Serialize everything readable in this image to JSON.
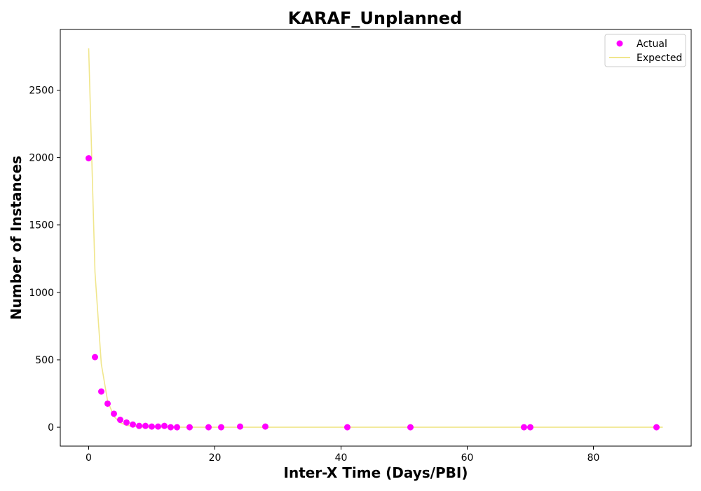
{
  "chart_data": {
    "type": "scatter",
    "title": "KARAF_Unplanned",
    "xlabel": "Inter-X Time (Days/PBI)",
    "ylabel": "Number of Instances",
    "xlim": [
      -4.5,
      95.5
    ],
    "ylim": [
      -140,
      2950
    ],
    "x_ticks": [
      0,
      20,
      40,
      60,
      80
    ],
    "y_ticks": [
      0,
      500,
      1000,
      1500,
      2000,
      2500
    ],
    "grid": false,
    "legend_position": "top-right",
    "series": [
      {
        "name": "Actual",
        "kind": "scatter",
        "color": "#ff00ff",
        "points": [
          {
            "x": 0,
            "y": 1995
          },
          {
            "x": 1,
            "y": 520
          },
          {
            "x": 2,
            "y": 265
          },
          {
            "x": 3,
            "y": 175
          },
          {
            "x": 4,
            "y": 100
          },
          {
            "x": 5,
            "y": 55
          },
          {
            "x": 6,
            "y": 35
          },
          {
            "x": 7,
            "y": 20
          },
          {
            "x": 8,
            "y": 10
          },
          {
            "x": 9,
            "y": 10
          },
          {
            "x": 10,
            "y": 5
          },
          {
            "x": 11,
            "y": 5
          },
          {
            "x": 12,
            "y": 10
          },
          {
            "x": 13,
            "y": 0
          },
          {
            "x": 14,
            "y": 0
          },
          {
            "x": 16,
            "y": 0
          },
          {
            "x": 19,
            "y": 0
          },
          {
            "x": 21,
            "y": 0
          },
          {
            "x": 24,
            "y": 5
          },
          {
            "x": 28,
            "y": 5
          },
          {
            "x": 41,
            "y": 0
          },
          {
            "x": 51,
            "y": 0
          },
          {
            "x": 69,
            "y": 0
          },
          {
            "x": 70,
            "y": 0
          },
          {
            "x": 90,
            "y": 0
          }
        ]
      },
      {
        "name": "Expected",
        "kind": "line",
        "color": "#f0e68c",
        "points": [
          {
            "x": 0,
            "y": 2810
          },
          {
            "x": 1,
            "y": 1150
          },
          {
            "x": 2,
            "y": 470
          },
          {
            "x": 3,
            "y": 195
          },
          {
            "x": 4,
            "y": 80
          },
          {
            "x": 5,
            "y": 33
          },
          {
            "x": 6,
            "y": 14
          },
          {
            "x": 7,
            "y": 6
          },
          {
            "x": 8,
            "y": 2
          },
          {
            "x": 10,
            "y": 0.5
          },
          {
            "x": 15,
            "y": 0
          },
          {
            "x": 30,
            "y": 0
          },
          {
            "x": 60,
            "y": 0
          },
          {
            "x": 91,
            "y": 0
          }
        ]
      }
    ]
  }
}
